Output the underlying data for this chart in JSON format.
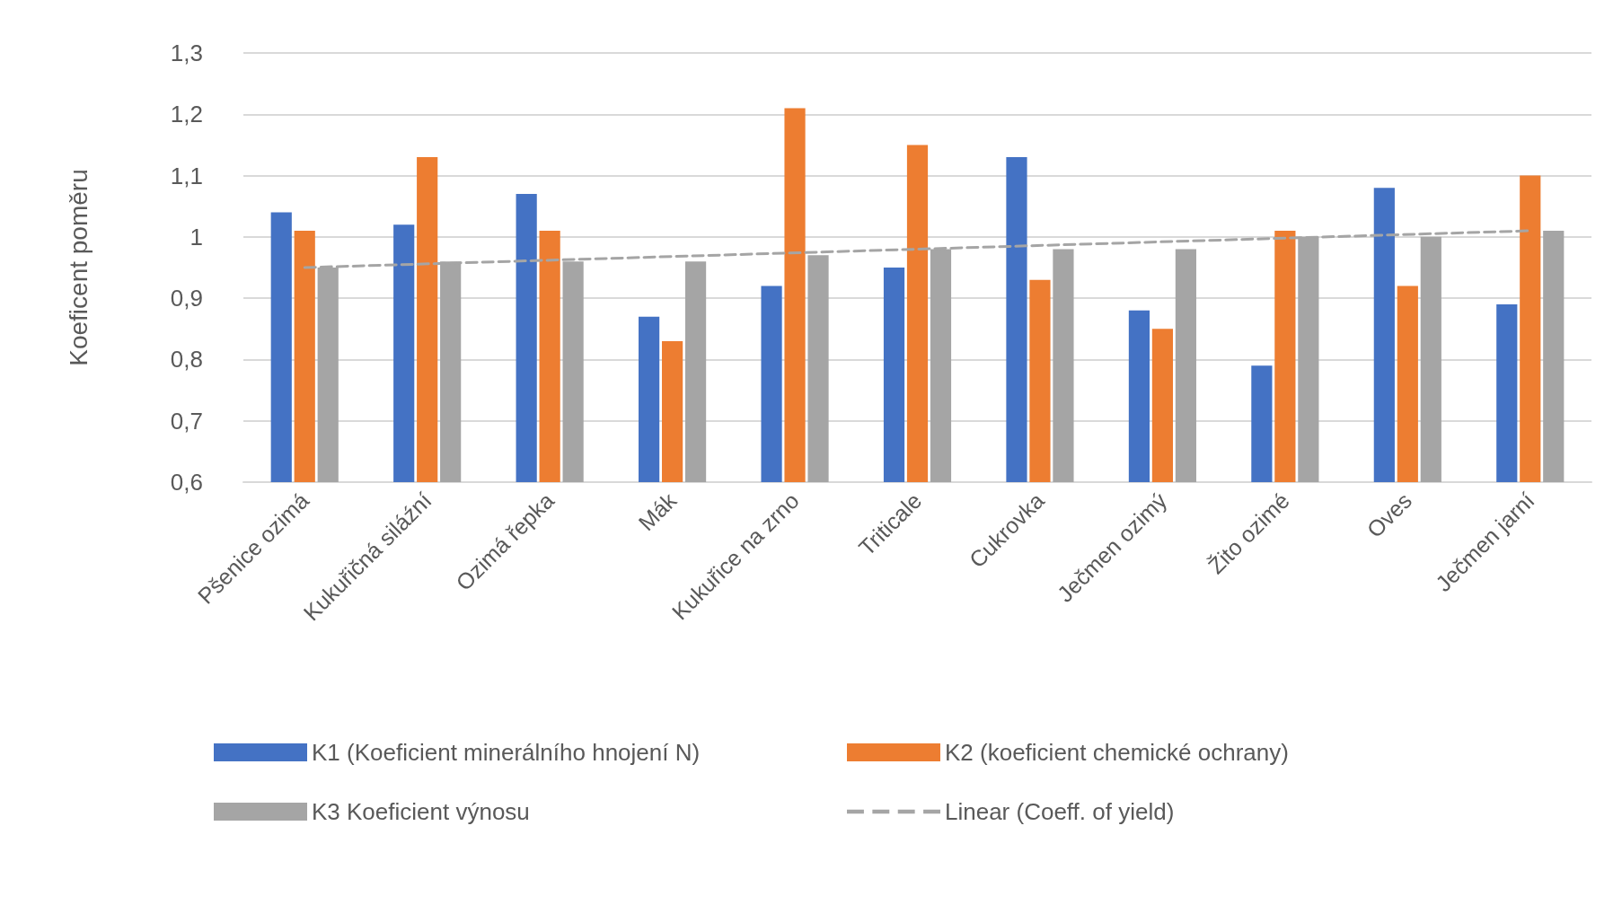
{
  "chart_data": {
    "type": "bar",
    "ylabel": "Koeficent poměru",
    "categories": [
      "Pšenice ozimá",
      "Kukuřičná siláźní",
      "Ozimá řepka",
      "Mák",
      "Kukuřice na zrno",
      "Triticale",
      "Cukrovka",
      "Ječmen ozimý",
      "Žito ozimé",
      "Oves",
      "Ječmen jarní"
    ],
    "series": [
      {
        "name": "K1 (Koeficient minerálního hnojení N)",
        "color": "#4472c4",
        "values": [
          1.04,
          1.02,
          1.07,
          0.87,
          0.92,
          0.95,
          1.13,
          0.88,
          0.79,
          1.08,
          0.89
        ]
      },
      {
        "name": "K2 (koeficient chemické ochrany)",
        "color": "#ed7d31",
        "values": [
          1.01,
          1.13,
          1.01,
          0.83,
          1.21,
          1.15,
          0.93,
          0.85,
          1.01,
          0.92,
          1.1
        ]
      },
      {
        "name": "K3 Koeficient výnosu",
        "color": "#a5a5a5",
        "values": [
          0.95,
          0.96,
          0.96,
          0.96,
          0.97,
          0.98,
          0.98,
          0.98,
          1.0,
          1.0,
          1.01
        ]
      },
      {
        "name": "Linear (Coeff. of yield)",
        "type": "line",
        "color": "#a5a5a5",
        "line_style": "dashed",
        "marker": "none",
        "x": [
          "Pšenice ozimá",
          "Ječmen jarní"
        ],
        "values": [
          0.95,
          1.01
        ]
      }
    ],
    "ylim": [
      0.6,
      1.3
    ],
    "yticks": [
      {
        "value": 0.6,
        "label": "0,6"
      },
      {
        "value": 0.7,
        "label": "0,7"
      },
      {
        "value": 0.8,
        "label": "0,8"
      },
      {
        "value": 0.9,
        "label": "0,9"
      },
      1,
      {
        "value": 1.1,
        "label": "1,1"
      },
      {
        "value": 1.2,
        "label": "1,2"
      },
      {
        "value": 1.3,
        "label": "1,3"
      }
    ],
    "grid": "y",
    "legend": "bottom"
  }
}
